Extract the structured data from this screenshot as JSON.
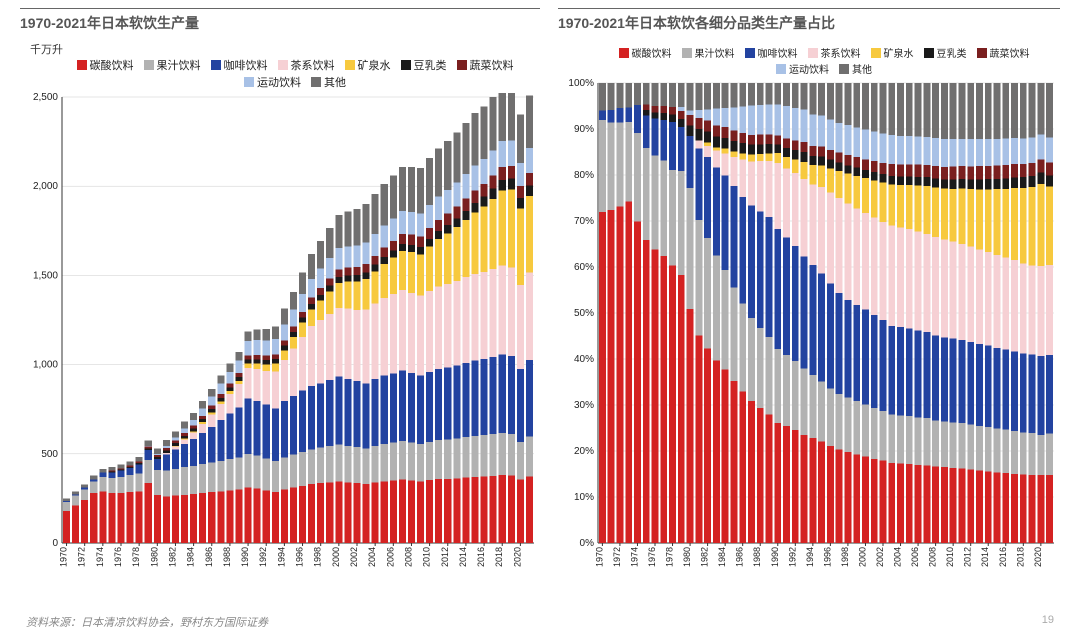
{
  "palette": {
    "碳酸饮料": "#d42222",
    "果汁饮料": "#b2b2b2",
    "咖啡饮料": "#2343a0",
    "茶系饮料": "#f6d0d4",
    "矿泉水": "#f7c93e",
    "豆乳类": "#1a1a1a",
    "蔬菜饮料": "#7a1f1f",
    "运动饮料": "#a8c1e6",
    "其他": "#706f6f"
  },
  "series_order": [
    "碳酸饮料",
    "果汁饮料",
    "咖啡饮料",
    "茶系饮料",
    "矿泉水",
    "豆乳类",
    "蔬菜饮料",
    "运动饮料",
    "其他"
  ],
  "years": [
    1970,
    1971,
    1972,
    1973,
    1974,
    1975,
    1976,
    1977,
    1978,
    1979,
    1980,
    1981,
    1982,
    1983,
    1984,
    1985,
    1986,
    1987,
    1988,
    1989,
    1990,
    1991,
    1992,
    1993,
    1994,
    1995,
    1996,
    1997,
    1998,
    1999,
    2000,
    2001,
    2002,
    2003,
    2004,
    2005,
    2006,
    2007,
    2008,
    2009,
    2010,
    2011,
    2012,
    2013,
    2014,
    2015,
    2016,
    2017,
    2018,
    2019,
    2020,
    2021
  ],
  "legend_labels": [
    "碳酸饮料",
    "果汁饮料",
    "咖啡饮料",
    "茶系饮料",
    "矿泉水",
    "豆乳类",
    "蔬菜饮料",
    "运动饮料",
    "其他"
  ],
  "left_chart": {
    "title": "1970-2021年日本软饮生产量",
    "y_unit": "千万升",
    "ylim": [
      0,
      2500
    ],
    "ytick_step": 500,
    "type": "stacked-bar",
    "background": "#ffffff",
    "grid_color": "#cccccc",
    "bar_gap": 0.22,
    "data": [
      [
        180,
        50,
        5,
        0,
        0,
        0,
        0,
        0,
        15
      ],
      [
        210,
        55,
        8,
        0,
        0,
        0,
        0,
        0,
        17
      ],
      [
        240,
        60,
        10,
        0,
        0,
        0,
        0,
        0,
        18
      ],
      [
        280,
        65,
        12,
        0,
        0,
        0,
        0,
        0,
        20
      ],
      [
        290,
        80,
        25,
        0,
        0,
        0,
        0,
        0,
        20
      ],
      [
        280,
        85,
        30,
        0,
        0,
        5,
        5,
        0,
        20
      ],
      [
        280,
        90,
        35,
        0,
        0,
        6,
        6,
        0,
        22
      ],
      [
        285,
        95,
        40,
        0,
        0,
        7,
        7,
        0,
        23
      ],
      [
        290,
        100,
        50,
        0,
        0,
        8,
        8,
        0,
        25
      ],
      [
        335,
        130,
        55,
        0,
        0,
        10,
        10,
        5,
        30
      ],
      [
        270,
        140,
        60,
        0,
        0,
        12,
        12,
        5,
        32
      ],
      [
        260,
        145,
        90,
        10,
        0,
        14,
        14,
        10,
        34
      ],
      [
        265,
        150,
        110,
        15,
        5,
        15,
        15,
        15,
        36
      ],
      [
        270,
        155,
        130,
        25,
        5,
        16,
        16,
        25,
        38
      ],
      [
        275,
        158,
        150,
        35,
        8,
        17,
        17,
        30,
        40
      ],
      [
        280,
        162,
        175,
        50,
        10,
        18,
        18,
        40,
        42
      ],
      [
        285,
        165,
        200,
        70,
        12,
        19,
        19,
        50,
        44
      ],
      [
        290,
        170,
        230,
        90,
        14,
        20,
        20,
        60,
        46
      ],
      [
        295,
        175,
        255,
        110,
        16,
        21,
        21,
        65,
        48
      ],
      [
        300,
        180,
        280,
        130,
        18,
        22,
        22,
        70,
        50
      ],
      [
        310,
        190,
        310,
        170,
        25,
        23,
        23,
        80,
        55
      ],
      [
        305,
        185,
        305,
        180,
        30,
        24,
        24,
        85,
        60
      ],
      [
        295,
        180,
        300,
        190,
        35,
        25,
        25,
        85,
        65
      ],
      [
        285,
        175,
        295,
        205,
        45,
        26,
        27,
        85,
        70
      ],
      [
        300,
        180,
        315,
        230,
        55,
        27,
        28,
        90,
        90
      ],
      [
        310,
        185,
        330,
        265,
        65,
        28,
        30,
        95,
        100
      ],
      [
        320,
        190,
        345,
        300,
        80,
        29,
        32,
        100,
        120
      ],
      [
        330,
        195,
        355,
        335,
        95,
        30,
        35,
        105,
        140
      ],
      [
        335,
        200,
        360,
        355,
        110,
        31,
        38,
        110,
        155
      ],
      [
        340,
        205,
        370,
        370,
        125,
        32,
        40,
        115,
        170
      ],
      [
        345,
        208,
        380,
        385,
        140,
        33,
        42,
        120,
        185
      ],
      [
        340,
        205,
        375,
        395,
        150,
        34,
        44,
        120,
        195
      ],
      [
        335,
        202,
        370,
        400,
        160,
        35,
        46,
        120,
        205
      ],
      [
        330,
        200,
        365,
        415,
        170,
        36,
        48,
        120,
        215
      ],
      [
        338,
        205,
        375,
        425,
        180,
        37,
        50,
        122,
        225
      ],
      [
        346,
        210,
        382,
        435,
        192,
        38,
        52,
        124,
        232
      ],
      [
        350,
        213,
        388,
        445,
        205,
        39,
        54,
        126,
        240
      ],
      [
        356,
        216,
        395,
        450,
        220,
        40,
        56,
        128,
        248
      ],
      [
        350,
        212,
        390,
        450,
        228,
        41,
        57,
        128,
        252
      ],
      [
        346,
        208,
        384,
        448,
        232,
        42,
        58,
        128,
        255
      ],
      [
        352,
        214,
        392,
        455,
        248,
        44,
        60,
        130,
        262
      ],
      [
        358,
        218,
        400,
        462,
        265,
        46,
        62,
        132,
        268
      ],
      [
        360,
        220,
        404,
        468,
        282,
        48,
        64,
        134,
        274
      ],
      [
        362,
        224,
        410,
        474,
        300,
        50,
        66,
        136,
        280
      ],
      [
        366,
        228,
        416,
        480,
        320,
        52,
        68,
        138,
        286
      ],
      [
        370,
        230,
        422,
        486,
        345,
        54,
        70,
        140,
        292
      ],
      [
        372,
        232,
        426,
        490,
        365,
        56,
        71,
        140,
        296
      ],
      [
        376,
        234,
        432,
        495,
        392,
        58,
        72,
        141,
        300
      ],
      [
        380,
        236,
        440,
        500,
        420,
        60,
        72,
        144,
        308
      ],
      [
        378,
        234,
        436,
        496,
        438,
        60,
        72,
        143,
        303
      ],
      [
        355,
        210,
        410,
        470,
        430,
        58,
        68,
        130,
        270
      ],
      [
        372,
        225,
        428,
        490,
        430,
        60,
        70,
        138,
        296
      ]
    ]
  },
  "right_chart": {
    "title": "1970-2021年日本软饮各细分品类生产量占比",
    "ylim": [
      0,
      100
    ],
    "ytick_step": 10,
    "y_suffix": "%",
    "type": "stacked-bar-100",
    "background": "#ffffff",
    "grid_color": "#cccccc",
    "bar_gap": 0.22
  },
  "footer": {
    "source": "资料来源：日本清凉饮料协会，野村东方国际证券",
    "page": "19"
  }
}
